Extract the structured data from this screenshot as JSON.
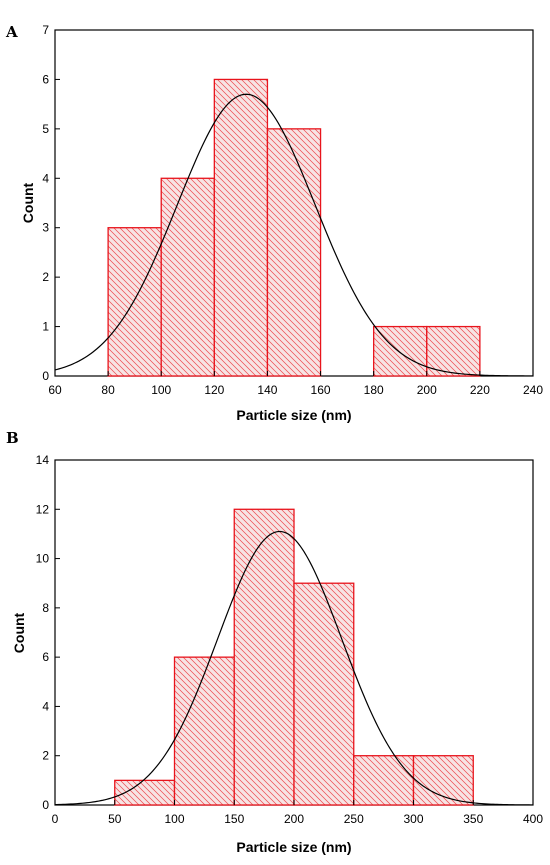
{
  "chart_data": [
    {
      "type": "bar",
      "panel_label": "A",
      "bins": [
        {
          "x0": 80,
          "x1": 100,
          "count": 3
        },
        {
          "x0": 100,
          "x1": 120,
          "count": 4
        },
        {
          "x0": 120,
          "x1": 140,
          "count": 6
        },
        {
          "x0": 140,
          "x1": 160,
          "count": 5
        },
        {
          "x0": 160,
          "x1": 180,
          "count": 0
        },
        {
          "x0": 180,
          "x1": 200,
          "count": 1
        },
        {
          "x0": 200,
          "x1": 220,
          "count": 1
        }
      ],
      "fit": {
        "type": "gaussian",
        "mean": 132,
        "sd": 26,
        "peak": 5.7
      },
      "xlabel": "Particle size (nm)",
      "ylabel": "Count",
      "xlim": [
        60,
        240
      ],
      "ylim": [
        0,
        7
      ],
      "xticks": [
        60,
        80,
        100,
        120,
        140,
        160,
        180,
        200,
        220,
        240
      ],
      "yticks": [
        0,
        1,
        2,
        3,
        4,
        5,
        6,
        7
      ],
      "bar_color": "#e8141c",
      "bar_fill": "#f7e4e4",
      "grid": false
    },
    {
      "type": "bar",
      "panel_label": "B",
      "bins": [
        {
          "x0": 50,
          "x1": 100,
          "count": 1
        },
        {
          "x0": 100,
          "x1": 150,
          "count": 6
        },
        {
          "x0": 150,
          "x1": 200,
          "count": 12
        },
        {
          "x0": 200,
          "x1": 250,
          "count": 9
        },
        {
          "x0": 250,
          "x1": 300,
          "count": 2
        },
        {
          "x0": 300,
          "x1": 350,
          "count": 2
        }
      ],
      "fit": {
        "type": "gaussian",
        "mean": 188,
        "sd": 52,
        "peak": 11.1
      },
      "xlabel": "Particle size (nm)",
      "ylabel": "Count",
      "xlim": [
        0,
        400
      ],
      "ylim": [
        0,
        14
      ],
      "xticks": [
        0,
        50,
        100,
        150,
        200,
        250,
        300,
        350,
        400
      ],
      "yticks": [
        0,
        2,
        4,
        6,
        8,
        10,
        12,
        14
      ],
      "bar_color": "#e8141c",
      "bar_fill": "#f7e4e4",
      "grid": false
    }
  ]
}
